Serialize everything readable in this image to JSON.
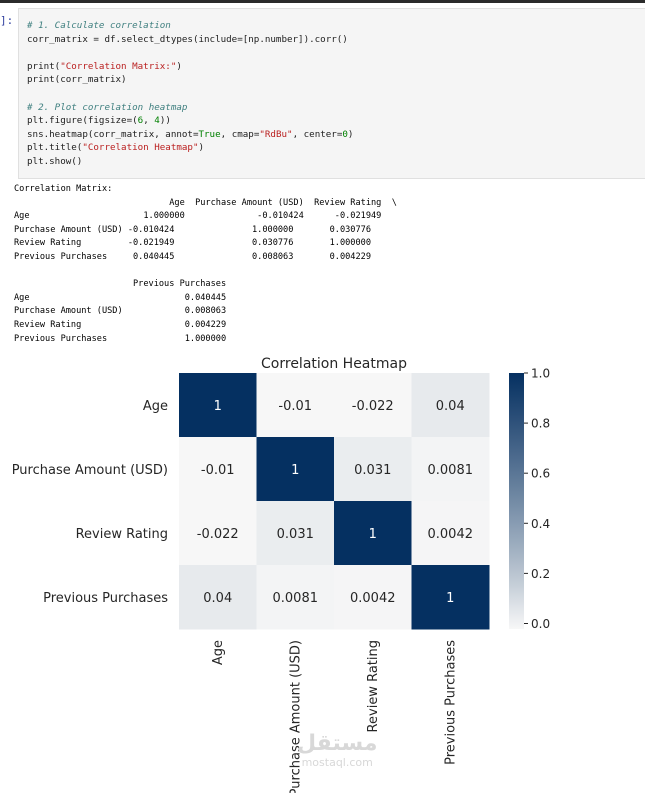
{
  "prompt": "]:",
  "code": {
    "comment1": "# 1. Calculate correlation",
    "line1": "corr_matrix = df.select_dtypes(include=[np.number]).corr()",
    "print1_fn": "print(",
    "print1_str": "\"Correlation Matrix:\"",
    "print1_end": ")",
    "print2": "print(corr_matrix)",
    "comment2": "# 2. Plot correlation heatmap",
    "fig_a": "plt.figure(figsize=(",
    "fig_n1": "6",
    "fig_sep": ", ",
    "fig_n2": "4",
    "fig_end": "))",
    "hm_a": "sns.heatmap(corr_matrix, annot=",
    "hm_true": "True",
    "hm_b": ", cmap=",
    "hm_cmap": "\"RdBu\"",
    "hm_c": ", center=",
    "hm_zero": "0",
    "hm_end": ")",
    "title_a": "plt.title(",
    "title_str": "\"Correlation Heatmap\"",
    "title_end": ")",
    "show": "plt.show()"
  },
  "output_text": "Correlation Matrix:\n                              Age  Purchase Amount (USD)  Review Rating  \\\nAge                      1.000000              -0.010424      -0.021949   \nPurchase Amount (USD) -0.010424               1.000000       0.030776   \nReview Rating         -0.021949               0.030776       1.000000   \nPrevious Purchases     0.040445               0.008063       0.004229   \n\n                       Previous Purchases  \nAge                              0.040445  \nPurchase Amount (USD)            0.008063  \nReview Rating                    0.004229  \nPrevious Purchases               1.000000  ",
  "chart_data": {
    "type": "heatmap",
    "title": "Correlation Heatmap",
    "rows": [
      "Age",
      "Purchase Amount (USD)",
      "Review Rating",
      "Previous Purchases"
    ],
    "cols": [
      "Age",
      "Purchase Amount (USD)",
      "Review Rating",
      "Previous Purchases"
    ],
    "values": [
      [
        1.0,
        -0.010424,
        -0.021949,
        0.040445
      ],
      [
        -0.010424,
        1.0,
        0.030776,
        0.008063
      ],
      [
        -0.021949,
        0.030776,
        1.0,
        0.004229
      ],
      [
        0.040445,
        0.008063,
        0.004229,
        1.0
      ]
    ],
    "annotations": [
      [
        "1",
        "-0.01",
        "-0.022",
        "0.04"
      ],
      [
        "-0.01",
        "1",
        "0.031",
        "0.0081"
      ],
      [
        "-0.022",
        "0.031",
        "1",
        "0.0042"
      ],
      [
        "0.04",
        "0.0081",
        "0.0042",
        "1"
      ]
    ],
    "colorbar_ticks": [
      "1.0",
      "0.8",
      "0.6",
      "0.4",
      "0.2",
      "0.0"
    ],
    "colorbar_range": [
      -0.022,
      1.0
    ],
    "colors": {
      "high": "#053061",
      "mid": "#f7f7f7",
      "low": "#67001f"
    }
  },
  "watermark": {
    "arabic": "مستقل",
    "latin": "mostaql.com"
  }
}
